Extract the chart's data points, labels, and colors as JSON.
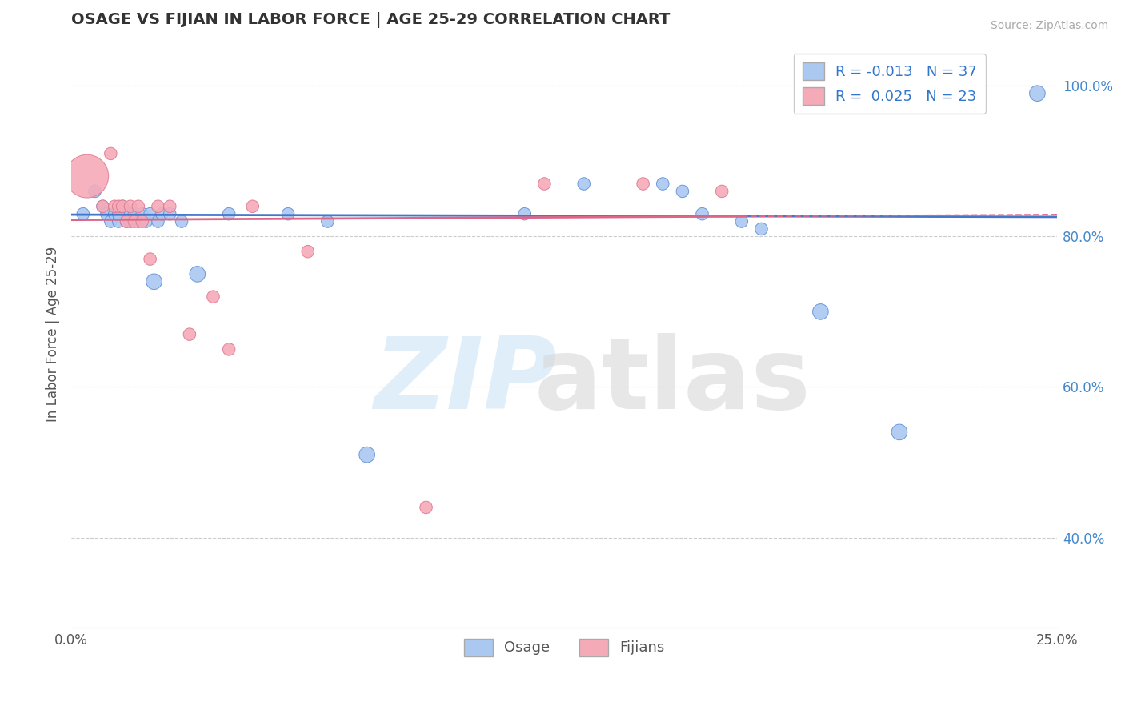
{
  "title": "OSAGE VS FIJIAN IN LABOR FORCE | AGE 25-29 CORRELATION CHART",
  "source": "Source: ZipAtlas.com",
  "ylabel": "In Labor Force | Age 25-29",
  "xlim": [
    0.0,
    0.25
  ],
  "ylim": [
    0.28,
    1.06
  ],
  "xtick_positions": [
    0.0,
    0.05,
    0.1,
    0.15,
    0.2,
    0.25
  ],
  "xticklabels": [
    "0.0%",
    "",
    "",
    "",
    "",
    "25.0%"
  ],
  "yticks_right": [
    0.4,
    0.6,
    0.8,
    1.0
  ],
  "ytick_labels_right": [
    "40.0%",
    "60.0%",
    "80.0%",
    "100.0%"
  ],
  "osage_color": "#aac8f0",
  "fijian_color": "#f5aab8",
  "osage_edge_color": "#6090d8",
  "fijian_edge_color": "#e07890",
  "osage_line_color": "#4477cc",
  "fijian_line_color": "#dd6688",
  "R_osage": -0.013,
  "N_osage": 37,
  "R_fijian": 0.025,
  "N_fijian": 23,
  "osage_points_x": [
    0.003,
    0.006,
    0.008,
    0.009,
    0.01,
    0.011,
    0.012,
    0.012,
    0.013,
    0.014,
    0.015,
    0.015,
    0.016,
    0.017,
    0.018,
    0.019,
    0.02,
    0.021,
    0.022,
    0.023,
    0.025,
    0.028,
    0.032,
    0.04,
    0.055,
    0.065,
    0.075,
    0.115,
    0.13,
    0.15,
    0.155,
    0.16,
    0.17,
    0.175,
    0.19,
    0.21,
    0.245
  ],
  "osage_points_y": [
    0.83,
    0.86,
    0.84,
    0.83,
    0.82,
    0.83,
    0.82,
    0.83,
    0.84,
    0.82,
    0.83,
    0.82,
    0.83,
    0.82,
    0.83,
    0.82,
    0.83,
    0.74,
    0.82,
    0.83,
    0.83,
    0.82,
    0.75,
    0.83,
    0.83,
    0.82,
    0.51,
    0.83,
    0.87,
    0.87,
    0.86,
    0.83,
    0.82,
    0.81,
    0.7,
    0.54,
    0.99
  ],
  "osage_sizes": [
    25,
    25,
    25,
    25,
    25,
    25,
    25,
    25,
    25,
    25,
    25,
    25,
    25,
    25,
    25,
    25,
    25,
    40,
    25,
    25,
    25,
    25,
    40,
    25,
    25,
    25,
    40,
    25,
    25,
    25,
    25,
    25,
    25,
    25,
    40,
    40,
    40
  ],
  "fijian_points_x": [
    0.004,
    0.008,
    0.01,
    0.011,
    0.012,
    0.013,
    0.014,
    0.015,
    0.016,
    0.017,
    0.018,
    0.02,
    0.022,
    0.025,
    0.03,
    0.036,
    0.04,
    0.046,
    0.06,
    0.09,
    0.12,
    0.145,
    0.165
  ],
  "fijian_points_y": [
    0.88,
    0.84,
    0.91,
    0.84,
    0.84,
    0.84,
    0.82,
    0.84,
    0.82,
    0.84,
    0.82,
    0.77,
    0.84,
    0.84,
    0.67,
    0.72,
    0.65,
    0.84,
    0.78,
    0.44,
    0.87,
    0.87,
    0.86
  ],
  "fijian_sizes": [
    300,
    25,
    25,
    25,
    25,
    25,
    25,
    25,
    25,
    25,
    25,
    25,
    25,
    25,
    25,
    25,
    25,
    25,
    25,
    25,
    25,
    25,
    25
  ],
  "osage_trend_y": [
    0.829,
    0.826
  ],
  "fijian_trend_y": [
    0.822,
    0.829
  ]
}
